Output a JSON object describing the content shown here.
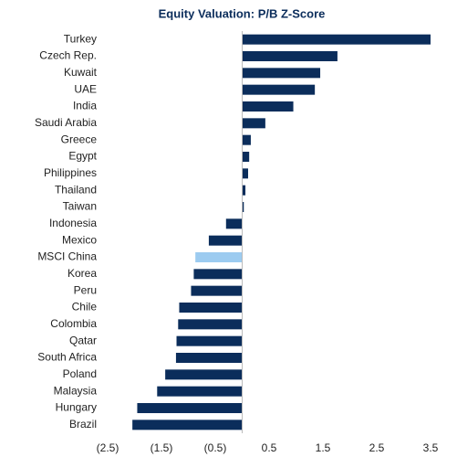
{
  "chart_data": {
    "type": "barh",
    "title": "Equity Valuation: P/B Z-Score",
    "categories": [
      "Turkey",
      "Czech Rep.",
      "Kuwait",
      "UAE",
      "India",
      "Saudi Arabia",
      "Greece",
      "Egypt",
      "Philippines",
      "Thailand",
      "Taiwan",
      "Indonesia",
      "Mexico",
      "MSCI China",
      "Korea",
      "Peru",
      "Chile",
      "Colombia",
      "Qatar",
      "South Africa",
      "Poland",
      "Malaysia",
      "Hungary",
      "Brazil"
    ],
    "values": [
      3.5,
      1.77,
      1.45,
      1.35,
      0.95,
      0.43,
      0.16,
      0.13,
      0.11,
      0.06,
      0.03,
      -0.3,
      -0.62,
      -0.87,
      -0.9,
      -0.95,
      -1.17,
      -1.19,
      -1.22,
      -1.23,
      -1.43,
      -1.58,
      -1.95,
      -2.04
    ],
    "colors": [
      "#0b2d5b",
      "#0b2d5b",
      "#0b2d5b",
      "#0b2d5b",
      "#0b2d5b",
      "#0b2d5b",
      "#0b2d5b",
      "#0b2d5b",
      "#0b2d5b",
      "#0b2d5b",
      "#0b2d5b",
      "#0b2d5b",
      "#0b2d5b",
      "#9ccbf0",
      "#0b2d5b",
      "#0b2d5b",
      "#0b2d5b",
      "#0b2d5b",
      "#0b2d5b",
      "#0b2d5b",
      "#0b2d5b",
      "#0b2d5b",
      "#0b2d5b",
      "#0b2d5b"
    ],
    "xlim": [
      -2.5,
      3.5
    ],
    "xticks": [
      {
        "value": -2.5,
        "label": "(2.5)"
      },
      {
        "value": -1.5,
        "label": "(1.5)"
      },
      {
        "value": -0.5,
        "label": "(0.5)"
      },
      0.5,
      1.5,
      2.5,
      3.5
    ],
    "grid": false
  }
}
